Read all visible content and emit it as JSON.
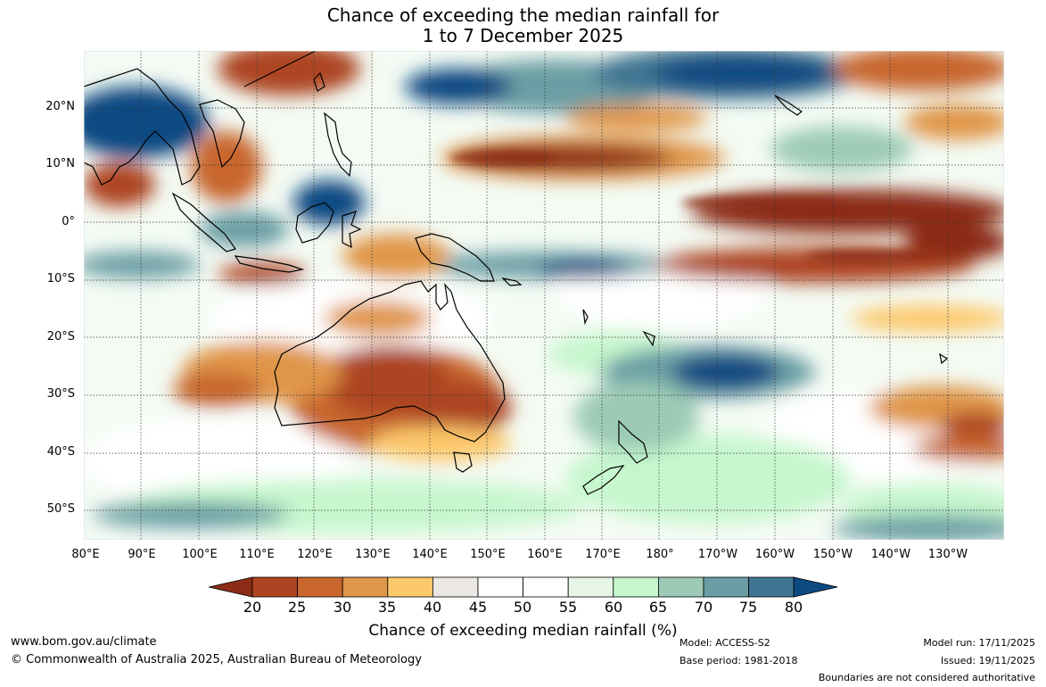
{
  "title": {
    "line1": "Chance of exceeding the median rainfall for",
    "line2": "1 to 7 December 2025"
  },
  "axes": {
    "lat_labels": [
      "20°N",
      "10°N",
      "0°",
      "10°S",
      "20°S",
      "30°S",
      "40°S",
      "50°S"
    ],
    "lon_labels": [
      "80°E",
      "90°E",
      "100°E",
      "110°E",
      "120°E",
      "130°E",
      "140°E",
      "150°E",
      "160°E",
      "170°E",
      "180°",
      "170°W",
      "160°W",
      "150°W",
      "140°W",
      "130°W"
    ]
  },
  "colorbar": {
    "label": "Chance of exceeding median rainfall (%)",
    "ticks": [
      "20",
      "25",
      "30",
      "35",
      "40",
      "45",
      "50",
      "55",
      "60",
      "65",
      "70",
      "75",
      "80"
    ],
    "colors": [
      "#8b2c17",
      "#ad4522",
      "#c8662e",
      "#e0964a",
      "#fdc86a",
      "#ebe8e3",
      "#ffffff",
      "#ffffff",
      "#e6f5e6",
      "#c6f7cd",
      "#9ccab6",
      "#6a9ea4",
      "#3f7591",
      "#0e4a82"
    ]
  },
  "footer": {
    "website": "www.bom.gov.au/climate",
    "copyright": "© Commonwealth of Australia 2025, Australian Bureau of Meteorology",
    "model": "Model: ACCESS-S2",
    "base_period": "Base period: 1981-2018",
    "model_run": "Model run: 17/11/2025",
    "issued": "Issued: 19/11/2025",
    "disclaimer": "Boundaries are not considered authoritative"
  }
}
